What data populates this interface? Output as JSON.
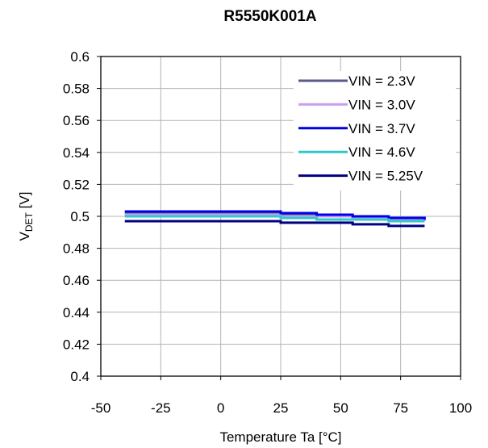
{
  "chart_data": {
    "type": "line",
    "title": "R5550K001A",
    "xlabel": "Temperature Ta [°C]",
    "ylabel": {
      "main": "V",
      "sub": "DET",
      "unit": " [V]"
    },
    "xlim": [
      -50,
      100
    ],
    "ylim": [
      0.4,
      0.6
    ],
    "x_ticks": [
      -50,
      -25,
      0,
      25,
      50,
      75,
      100
    ],
    "x_tick_labels": [
      "-50",
      "-25",
      "0",
      "25",
      "50",
      "75",
      "100"
    ],
    "y_ticks": [
      0.4,
      0.42,
      0.44,
      0.46,
      0.48,
      0.5,
      0.52,
      0.54,
      0.56,
      0.58,
      0.6
    ],
    "y_tick_labels": [
      "0.4",
      "0.42",
      "0.44",
      "0.46",
      "0.48",
      "0.5",
      "0.52",
      "0.54",
      "0.56",
      "0.58",
      "0.6"
    ],
    "grid": true,
    "legend_position": "top-right",
    "x": [
      -40,
      -25,
      -5,
      25,
      40,
      55,
      70,
      85
    ],
    "series": [
      {
        "name": "VIN = 2.3V",
        "color": "#5a5a8c",
        "values": [
          0.502,
          0.502,
          0.502,
          0.501,
          0.5,
          0.499,
          0.498,
          0.498
        ]
      },
      {
        "name": "VIN = 3.0V",
        "color": "#c8a0f0",
        "values": [
          0.501,
          0.501,
          0.501,
          0.5,
          0.5,
          0.499,
          0.498,
          0.497
        ]
      },
      {
        "name": "VIN = 3.7V",
        "color": "#0000e6",
        "values": [
          0.503,
          0.503,
          0.503,
          0.502,
          0.501,
          0.5,
          0.499,
          0.498
        ]
      },
      {
        "name": "VIN = 4.6V",
        "color": "#30c8c8",
        "values": [
          0.5,
          0.5,
          0.5,
          0.499,
          0.498,
          0.498,
          0.497,
          0.497
        ]
      },
      {
        "name": "VIN = 5.25V",
        "color": "#000080",
        "values": [
          0.497,
          0.497,
          0.497,
          0.496,
          0.496,
          0.495,
          0.494,
          0.494
        ]
      }
    ]
  }
}
